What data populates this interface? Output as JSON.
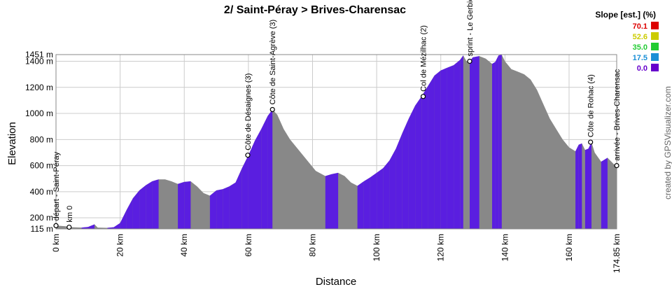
{
  "chart_data": {
    "type": "area",
    "title": "2/ Saint-Péray > Brives-Charensac",
    "xlabel": "Distance",
    "ylabel": "Elevation",
    "xlim": [
      0,
      174.85
    ],
    "ylim": [
      115,
      1451
    ],
    "x_ticks": [
      {
        "v": 0,
        "label": "0 km"
      },
      {
        "v": 20,
        "label": "20 km"
      },
      {
        "v": 40,
        "label": "40 km"
      },
      {
        "v": 60,
        "label": "60 km"
      },
      {
        "v": 80,
        "label": "80 km"
      },
      {
        "v": 100,
        "label": "100 km"
      },
      {
        "v": 120,
        "label": "120 km"
      },
      {
        "v": 140,
        "label": "140 km"
      },
      {
        "v": 160,
        "label": "160 km"
      },
      {
        "v": 174.85,
        "label": "174.85 km"
      }
    ],
    "y_ticks": [
      {
        "v": 115,
        "label": "115 m"
      },
      {
        "v": 200,
        "label": "200 m"
      },
      {
        "v": 400,
        "label": "400 m"
      },
      {
        "v": 600,
        "label": "600 m"
      },
      {
        "v": 800,
        "label": "800 m"
      },
      {
        "v": 1000,
        "label": "1000 m"
      },
      {
        "v": 1200,
        "label": "1200 m"
      },
      {
        "v": 1400,
        "label": "1400 m"
      },
      {
        "v": 1451,
        "label": "1451 m"
      }
    ],
    "profile": [
      [
        0,
        140
      ],
      [
        3,
        135
      ],
      [
        5,
        128
      ],
      [
        8,
        125
      ],
      [
        10,
        130
      ],
      [
        12,
        150
      ],
      [
        13,
        125
      ],
      [
        16,
        123
      ],
      [
        18,
        128
      ],
      [
        20,
        160
      ],
      [
        22,
        260
      ],
      [
        24,
        350
      ],
      [
        26,
        410
      ],
      [
        28,
        450
      ],
      [
        30,
        480
      ],
      [
        32,
        495
      ],
      [
        34,
        495
      ],
      [
        36,
        480
      ],
      [
        38,
        460
      ],
      [
        40,
        475
      ],
      [
        42,
        480
      ],
      [
        44,
        440
      ],
      [
        46,
        390
      ],
      [
        48,
        370
      ],
      [
        50,
        410
      ],
      [
        52,
        420
      ],
      [
        54,
        440
      ],
      [
        56,
        470
      ],
      [
        58,
        580
      ],
      [
        60,
        680
      ],
      [
        62,
        790
      ],
      [
        64,
        880
      ],
      [
        66,
        980
      ],
      [
        67.5,
        1030
      ],
      [
        69,
        990
      ],
      [
        71,
        880
      ],
      [
        73,
        800
      ],
      [
        75,
        740
      ],
      [
        78,
        650
      ],
      [
        81,
        560
      ],
      [
        84,
        520
      ],
      [
        86,
        535
      ],
      [
        88,
        545
      ],
      [
        90,
        520
      ],
      [
        92,
        470
      ],
      [
        94,
        445
      ],
      [
        96,
        480
      ],
      [
        98,
        510
      ],
      [
        100,
        545
      ],
      [
        102,
        580
      ],
      [
        104,
        640
      ],
      [
        106,
        730
      ],
      [
        108,
        850
      ],
      [
        110,
        960
      ],
      [
        112,
        1060
      ],
      [
        114,
        1130
      ],
      [
        116,
        1210
      ],
      [
        118,
        1290
      ],
      [
        120,
        1330
      ],
      [
        122,
        1350
      ],
      [
        124,
        1370
      ],
      [
        126,
        1410
      ],
      [
        127,
        1445
      ],
      [
        128,
        1400
      ],
      [
        129,
        1400
      ],
      [
        130,
        1430
      ],
      [
        132,
        1440
      ],
      [
        134,
        1420
      ],
      [
        136,
        1380
      ],
      [
        137,
        1395
      ],
      [
        138,
        1445
      ],
      [
        139,
        1450
      ],
      [
        140,
        1400
      ],
      [
        142,
        1340
      ],
      [
        144,
        1320
      ],
      [
        146,
        1300
      ],
      [
        148,
        1260
      ],
      [
        150,
        1180
      ],
      [
        152,
        1070
      ],
      [
        154,
        960
      ],
      [
        156,
        880
      ],
      [
        158,
        800
      ],
      [
        160,
        740
      ],
      [
        162,
        710
      ],
      [
        163,
        760
      ],
      [
        164,
        770
      ],
      [
        165,
        720
      ],
      [
        166,
        730
      ],
      [
        167,
        780
      ],
      [
        168,
        700
      ],
      [
        170,
        630
      ],
      [
        172,
        660
      ],
      [
        174,
        610
      ],
      [
        174.85,
        600
      ]
    ],
    "waypoints": [
      {
        "km": 0,
        "elev": 140,
        "label": "départ - Saint-Péray"
      },
      {
        "km": 4.1,
        "elev": 128,
        "label": "km 0"
      },
      {
        "km": 59.8,
        "elev": 680,
        "label": "Côte de Désaignes (3)"
      },
      {
        "km": 67.5,
        "elev": 1030,
        "label": "Côte de Saint-Agrève (3)"
      },
      {
        "km": 114.5,
        "elev": 1130,
        "label": "Col de Mézilhac (2)"
      },
      {
        "km": 129,
        "elev": 1400,
        "label": "sprint - Le Gerbier de Jonc"
      },
      {
        "km": 166.7,
        "elev": 780,
        "label": "Côte de Rohac (4)"
      },
      {
        "km": 174.85,
        "elev": 600,
        "label": "arrivée - Brives-Charensac"
      }
    ],
    "legend": {
      "title": "Slope [est.] (%)",
      "items": [
        {
          "value": "70.1",
          "color": "#dd0000"
        },
        {
          "value": "52.6",
          "color": "#cccc00"
        },
        {
          "value": "35.0",
          "color": "#22cc33"
        },
        {
          "value": "17.5",
          "color": "#1a8fd6"
        },
        {
          "value": "0.0",
          "color": "#6600cc"
        }
      ]
    },
    "colors": {
      "descent": "#888888",
      "climb": "#5a1ee0",
      "grid": "#cccccc"
    },
    "credit": "created by GPSVisualizer.com"
  }
}
